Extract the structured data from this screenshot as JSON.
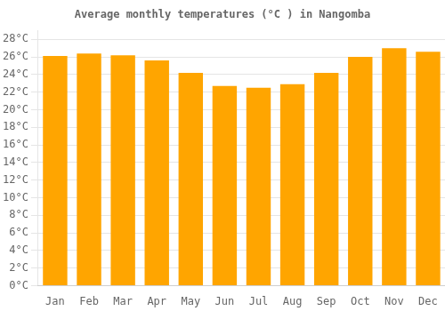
{
  "chart_data": {
    "type": "bar",
    "title": "Average monthly temperatures (°C ) in Nangomba",
    "categories": [
      "Jan",
      "Feb",
      "Mar",
      "Apr",
      "May",
      "Jun",
      "Jul",
      "Aug",
      "Sep",
      "Oct",
      "Nov",
      "Dec"
    ],
    "values": [
      26.1,
      26.4,
      26.2,
      25.6,
      24.2,
      22.7,
      22.5,
      22.9,
      24.2,
      26.0,
      27.0,
      26.6
    ],
    "color": "#FFA500",
    "ylim": [
      0,
      29
    ],
    "yticks": [
      {
        "value": 0,
        "label": "0°C"
      },
      {
        "value": 2,
        "label": "2°C"
      },
      {
        "value": 4,
        "label": "4°C"
      },
      {
        "value": 6,
        "label": "6°C"
      },
      {
        "value": 8,
        "label": "8°C"
      },
      {
        "value": 10,
        "label": "10°C"
      },
      {
        "value": 12,
        "label": "12°C"
      },
      {
        "value": 14,
        "label": "14°C"
      },
      {
        "value": 16,
        "label": "16°C"
      },
      {
        "value": 18,
        "label": "18°C"
      },
      {
        "value": 20,
        "label": "20°C"
      },
      {
        "value": 22,
        "label": "22°C"
      },
      {
        "value": 24,
        "label": "24°C"
      },
      {
        "value": 26,
        "label": "26°C"
      },
      {
        "value": 28,
        "label": "28°C"
      }
    ],
    "grid": true
  }
}
